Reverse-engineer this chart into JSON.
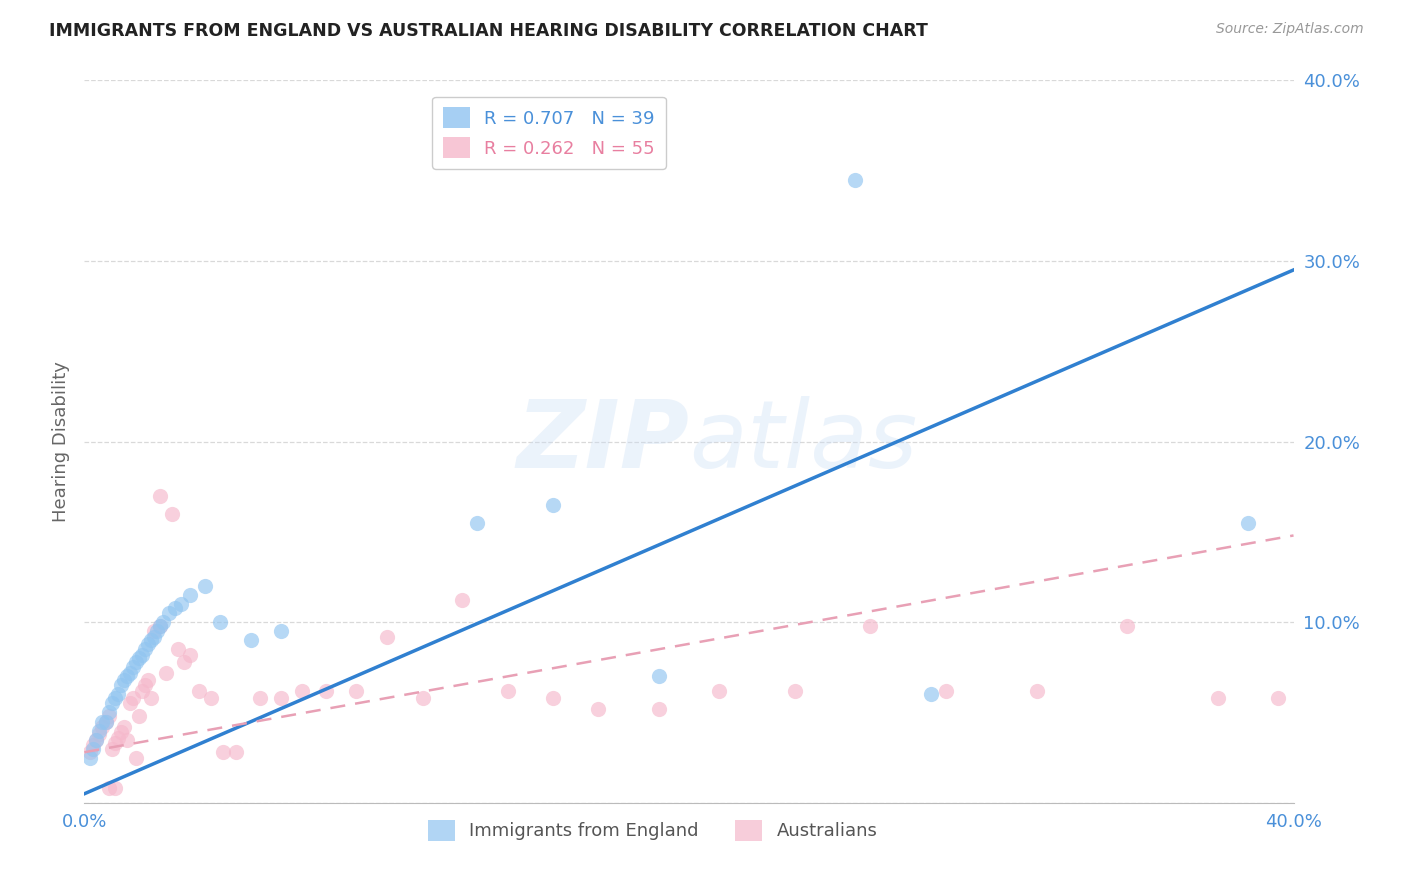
{
  "title": "IMMIGRANTS FROM ENGLAND VS AUSTRALIAN HEARING DISABILITY CORRELATION CHART",
  "source": "Source: ZipAtlas.com",
  "ylabel_label": "Hearing Disability",
  "xlim": [
    0.0,
    0.4
  ],
  "ylim": [
    0.0,
    0.4
  ],
  "xticks": [
    0.0,
    0.1,
    0.2,
    0.3,
    0.4
  ],
  "yticks": [
    0.0,
    0.1,
    0.2,
    0.3,
    0.4
  ],
  "xticklabels": [
    "0.0%",
    "",
    "",
    "",
    "40.0%"
  ],
  "yticklabels": [
    "",
    "10.0%",
    "20.0%",
    "30.0%",
    "40.0%"
  ],
  "watermark_zip": "ZIP",
  "watermark_atlas": "atlas",
  "legend_entries": [
    {
      "label": "R = 0.707   N = 39",
      "color": "#4a90d9"
    },
    {
      "label": "R = 0.262   N = 55",
      "color": "#e87fa0"
    }
  ],
  "blue_scatter_x": [
    0.002,
    0.003,
    0.004,
    0.005,
    0.006,
    0.007,
    0.008,
    0.009,
    0.01,
    0.011,
    0.012,
    0.013,
    0.014,
    0.015,
    0.016,
    0.017,
    0.018,
    0.019,
    0.02,
    0.021,
    0.022,
    0.023,
    0.024,
    0.025,
    0.026,
    0.028,
    0.03,
    0.032,
    0.035,
    0.04,
    0.045,
    0.055,
    0.065,
    0.13,
    0.155,
    0.19,
    0.255,
    0.28,
    0.385
  ],
  "blue_scatter_y": [
    0.025,
    0.03,
    0.035,
    0.04,
    0.045,
    0.045,
    0.05,
    0.055,
    0.058,
    0.06,
    0.065,
    0.068,
    0.07,
    0.072,
    0.075,
    0.078,
    0.08,
    0.082,
    0.085,
    0.088,
    0.09,
    0.092,
    0.095,
    0.098,
    0.1,
    0.105,
    0.108,
    0.11,
    0.115,
    0.12,
    0.1,
    0.09,
    0.095,
    0.155,
    0.165,
    0.07,
    0.345,
    0.06,
    0.155
  ],
  "pink_scatter_x": [
    0.002,
    0.003,
    0.004,
    0.005,
    0.006,
    0.007,
    0.008,
    0.009,
    0.01,
    0.011,
    0.012,
    0.013,
    0.014,
    0.015,
    0.016,
    0.017,
    0.018,
    0.019,
    0.02,
    0.021,
    0.022,
    0.023,
    0.025,
    0.027,
    0.029,
    0.031,
    0.033,
    0.035,
    0.038,
    0.042,
    0.046,
    0.05,
    0.058,
    0.065,
    0.072,
    0.08,
    0.09,
    0.1,
    0.112,
    0.125,
    0.14,
    0.155,
    0.17,
    0.19,
    0.21,
    0.235,
    0.26,
    0.285,
    0.315,
    0.345,
    0.375,
    0.395,
    0.025,
    0.01,
    0.008
  ],
  "pink_scatter_y": [
    0.028,
    0.032,
    0.035,
    0.038,
    0.042,
    0.045,
    0.048,
    0.03,
    0.033,
    0.036,
    0.039,
    0.042,
    0.035,
    0.055,
    0.058,
    0.025,
    0.048,
    0.062,
    0.065,
    0.068,
    0.058,
    0.095,
    0.17,
    0.072,
    0.16,
    0.085,
    0.078,
    0.082,
    0.062,
    0.058,
    0.028,
    0.028,
    0.058,
    0.058,
    0.062,
    0.062,
    0.062,
    0.092,
    0.058,
    0.112,
    0.062,
    0.058,
    0.052,
    0.052,
    0.062,
    0.062,
    0.098,
    0.062,
    0.062,
    0.098,
    0.058,
    0.058,
    0.098,
    0.008,
    0.008
  ],
  "blue_line_x": [
    0.0,
    0.4
  ],
  "blue_line_y": [
    0.005,
    0.295
  ],
  "pink_line_x": [
    0.0,
    0.4
  ],
  "pink_line_y": [
    0.028,
    0.148
  ],
  "blue_scatter_color": "#90c4f0",
  "pink_scatter_color": "#f5b8cb",
  "blue_line_color": "#3080d0",
  "pink_line_color": "#e8a0b5",
  "grid_color": "#d0d0d0",
  "axis_tick_color": "#4a90d9",
  "background_color": "#ffffff",
  "bottom_legend": [
    {
      "label": "Immigrants from England",
      "color": "#90c4f0"
    },
    {
      "label": "Australians",
      "color": "#f5b8cb"
    }
  ]
}
